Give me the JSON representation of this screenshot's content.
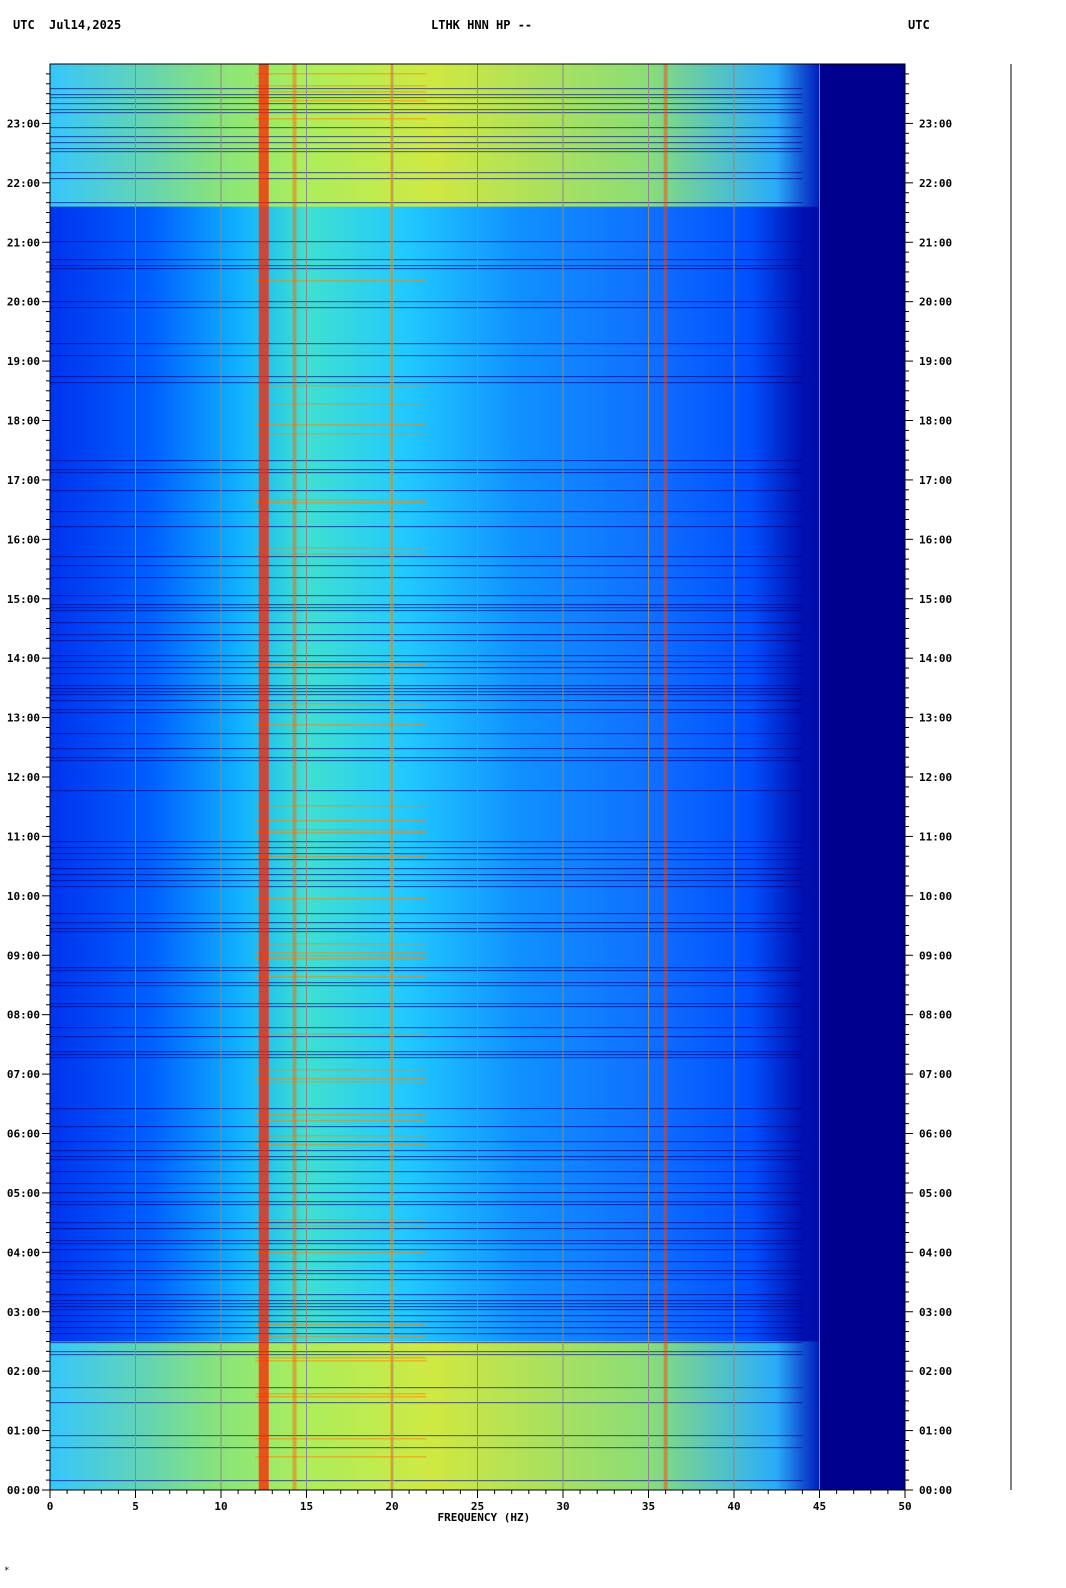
{
  "header": {
    "left_tz": "UTC",
    "date": "Jul14,2025",
    "station": "LTHK HNN HP --",
    "right_tz": "UTC"
  },
  "chart_data": {
    "type": "heatmap",
    "title": "LTHK HNN HP --",
    "xlabel": "FREQUENCY (HZ)",
    "ylabel": "UTC",
    "xlim": [
      0,
      50
    ],
    "x_ticks": [
      "0",
      "5",
      "10",
      "15",
      "20",
      "25",
      "30",
      "35",
      "40",
      "45",
      "50"
    ],
    "y_ticks": [
      "00:00",
      "01:00",
      "02:00",
      "03:00",
      "04:00",
      "05:00",
      "06:00",
      "07:00",
      "08:00",
      "09:00",
      "10:00",
      "11:00",
      "12:00",
      "13:00",
      "14:00",
      "15:00",
      "16:00",
      "17:00",
      "18:00",
      "19:00",
      "20:00",
      "21:00",
      "22:00",
      "23:00"
    ],
    "ylim_hours": [
      0,
      24
    ],
    "colormap": [
      "#00008f",
      "#0000ff",
      "#0080ff",
      "#00ffff",
      "#80ff80",
      "#ffff00",
      "#ff8000",
      "#ff0000"
    ],
    "grid": true,
    "notes": {
      "strong_bands_hz": [
        12.5,
        14.3,
        20,
        36
      ],
      "rolloff_hz": 45,
      "high_energy_periods_hours": [
        [
          0,
          2.5
        ],
        [
          21.6,
          24
        ]
      ]
    }
  },
  "footer": {
    "mark": "*"
  }
}
